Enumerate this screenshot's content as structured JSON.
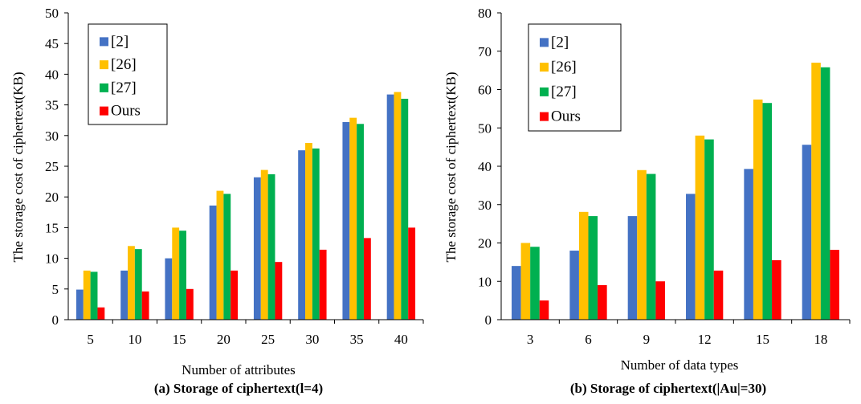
{
  "chart_data": [
    {
      "type": "bar",
      "caption": "(a) Storage of ciphertext(l=4)",
      "xlabel": "Number of attributes",
      "ylabel": "The storage cost of ciphertext(KB)",
      "ylim": [
        0,
        50
      ],
      "yticks": [
        0,
        5,
        10,
        15,
        20,
        25,
        30,
        35,
        40,
        45,
        50
      ],
      "categories": [
        "5",
        "10",
        "15",
        "20",
        "25",
        "30",
        "35",
        "40"
      ],
      "legend_position": "top-left",
      "series": [
        {
          "name": "[2]",
          "color": "#4472C4",
          "values": [
            4.9,
            8.0,
            10.0,
            18.6,
            23.2,
            27.6,
            32.2,
            36.7
          ]
        },
        {
          "name": "[26]",
          "color": "#FFC000",
          "values": [
            8.0,
            12.0,
            15.0,
            21.0,
            24.4,
            28.8,
            32.9,
            37.1
          ]
        },
        {
          "name": "[27]",
          "color": "#00B050",
          "values": [
            7.8,
            11.5,
            14.5,
            20.5,
            23.7,
            27.9,
            31.9,
            36.0
          ]
        },
        {
          "name": "Ours",
          "color": "#FF0000",
          "values": [
            2.0,
            4.6,
            5.0,
            8.0,
            9.4,
            11.4,
            13.3,
            15.0
          ]
        }
      ]
    },
    {
      "type": "bar",
      "caption": "(b) Storage of ciphertext(|Au|=30)",
      "xlabel": "Number of data types",
      "ylabel": "The storage cost of ciphertext(KB)",
      "ylim": [
        0,
        80
      ],
      "yticks": [
        0,
        10,
        20,
        30,
        40,
        50,
        60,
        70,
        80
      ],
      "categories": [
        "3",
        "6",
        "9",
        "12",
        "15",
        "18"
      ],
      "legend_position": "top-left",
      "series": [
        {
          "name": "[2]",
          "color": "#4472C4",
          "values": [
            14.0,
            18.0,
            27.0,
            32.8,
            39.3,
            45.6
          ]
        },
        {
          "name": "[26]",
          "color": "#FFC000",
          "values": [
            20.0,
            28.1,
            39.0,
            48.0,
            57.4,
            67.0
          ]
        },
        {
          "name": "[27]",
          "color": "#00B050",
          "values": [
            19.0,
            27.0,
            38.0,
            47.0,
            56.5,
            65.8
          ]
        },
        {
          "name": "Ours",
          "color": "#FF0000",
          "values": [
            5.0,
            9.0,
            10.0,
            12.8,
            15.5,
            18.2
          ]
        }
      ]
    }
  ]
}
